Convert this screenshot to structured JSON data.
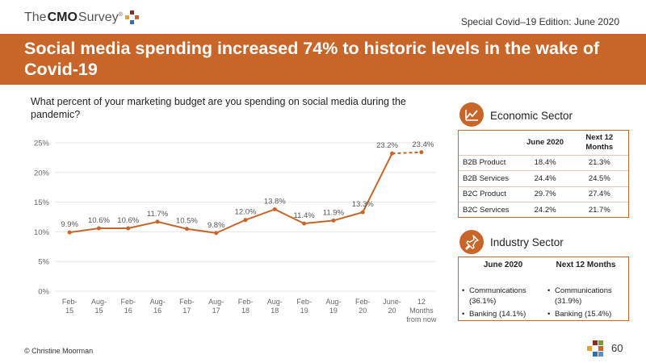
{
  "header": {
    "logo_prefix": "The",
    "logo_brand": "CMO",
    "logo_suffix": "Survey",
    "logo_trademark": "®",
    "edition": "Special Covid–19 Edition: June 2020"
  },
  "banner": {
    "title": "Social media spending increased 74% to historic levels in the wake of Covid-19"
  },
  "question": "What percent of your marketing budget are you spending on social media during the pandemic?",
  "chart_data": {
    "type": "line",
    "title": "",
    "xlabel": "",
    "ylabel": "",
    "categories": [
      [
        "Feb-",
        "15"
      ],
      [
        "Aug-",
        "15"
      ],
      [
        "Feb-",
        "16"
      ],
      [
        "Aug-",
        "16"
      ],
      [
        "Feb-",
        "17"
      ],
      [
        "Aug-",
        "17"
      ],
      [
        "Feb-",
        "18"
      ],
      [
        "Aug-",
        "18"
      ],
      [
        "Feb-",
        "19"
      ],
      [
        "Aug-",
        "19"
      ],
      [
        "Feb-",
        "20"
      ],
      [
        "June-",
        "20"
      ],
      [
        "12",
        "Months",
        "from now"
      ]
    ],
    "values": [
      9.9,
      10.6,
      10.6,
      11.7,
      10.5,
      9.8,
      12.0,
      13.8,
      11.4,
      11.9,
      13.3,
      23.2,
      23.4
    ],
    "data_labels": [
      "9.9%",
      "10.6%",
      "10.6%",
      "11.7%",
      "10.5%",
      "9.8%",
      "12.0%",
      "13.8%",
      "11.4%",
      "11.9%",
      "13.3%",
      "23.2%",
      "23.4%"
    ],
    "projection_start_index": 11,
    "y_ticks": [
      0,
      5,
      10,
      15,
      20,
      25
    ],
    "y_tick_labels": [
      "0%",
      "5%",
      "10%",
      "15%",
      "20%",
      "25%"
    ],
    "ylim": [
      0,
      25
    ],
    "grid": true,
    "color": "#c8662a",
    "grid_color": "#e6e6e6"
  },
  "economic_sector": {
    "title": "Economic Sector",
    "icon": "line-chart-icon",
    "col1": "June 2020",
    "col2": "Next 12 Months",
    "rows": [
      {
        "label": "B2B Product",
        "june": "18.4%",
        "next": "21.3%"
      },
      {
        "label": "B2B Services",
        "june": "24.4%",
        "next": "24.5%"
      },
      {
        "label": "B2C Product",
        "june": "29.7%",
        "next": "27.4%"
      },
      {
        "label": "B2C Services",
        "june": "24.2%",
        "next": "21.7%"
      }
    ]
  },
  "industry_sector": {
    "title": "Industry Sector",
    "icon": "pushpin-icon",
    "col1": "June 2020",
    "col2": "Next 12 Months",
    "june": [
      "Communications (36.1%)",
      "Banking (14.1%)"
    ],
    "next": [
      "Communications (31.9%)",
      "Banking (15.4%)"
    ]
  },
  "footer": {
    "copyright": "© Christine Moorman",
    "page": "60"
  },
  "brand_colors": [
    "#c8662a",
    "#8b2c1e",
    "#e8a02a",
    "#2f6fb0",
    "#7a9a3a",
    "#5a8fc7"
  ]
}
